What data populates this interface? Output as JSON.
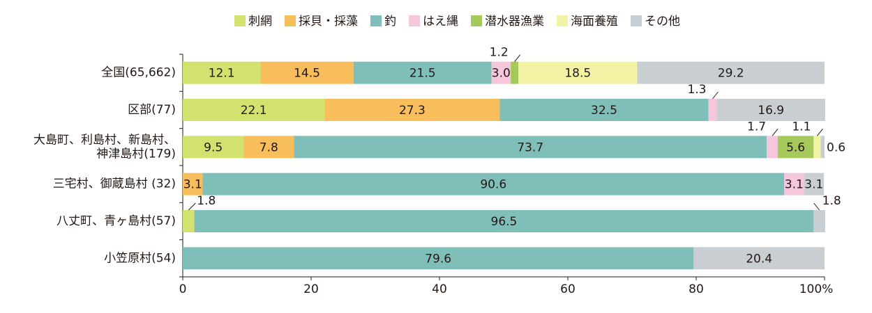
{
  "chart_data": {
    "type": "stacked-bar",
    "categories": [
      "全国(65,662)",
      "区部(77)",
      "大島町、利島村、新島村、\n神津島村(179)",
      "三宅村、御蔵島村 (32)",
      "八丈町、青ヶ島村(57)",
      "小笠原村(54)"
    ],
    "series": [
      {
        "name": "刺網",
        "color": "#d3e26e",
        "values": [
          12.1,
          22.1,
          9.5,
          null,
          1.8,
          null
        ],
        "value_labels": [
          "12.1",
          "22.1",
          "9.5",
          null,
          "1.8",
          null
        ]
      },
      {
        "name": "採貝・採藻",
        "color": "#f7be5b",
        "values": [
          14.5,
          27.3,
          7.8,
          3.1,
          null,
          null
        ],
        "value_labels": [
          "14.5",
          "27.3",
          "7.8",
          "3.1",
          null,
          null
        ]
      },
      {
        "name": "釣",
        "color": "#80bfb9",
        "values": [
          21.5,
          32.5,
          73.7,
          90.6,
          96.5,
          79.6
        ],
        "value_labels": [
          "21.5",
          "32.5",
          "73.7",
          "90.6",
          "96.5",
          "79.6"
        ]
      },
      {
        "name": "はえ縄",
        "color": "#f6c7dc",
        "values": [
          3.0,
          1.3,
          1.7,
          3.1,
          null,
          null
        ],
        "value_labels": [
          "3.0",
          "1.3",
          "1.7",
          "3.1",
          null,
          null
        ]
      },
      {
        "name": "潜水器漁業",
        "color": "#a5c95b",
        "values": [
          1.2,
          null,
          5.6,
          null,
          null,
          null
        ],
        "value_labels": [
          "1.2",
          null,
          "5.6",
          null,
          null,
          null
        ]
      },
      {
        "name": "海面養殖",
        "color": "#f3f3a6",
        "values": [
          18.5,
          null,
          1.1,
          null,
          null,
          null
        ],
        "value_labels": [
          "18.5",
          null,
          "1.1",
          null,
          null,
          null
        ]
      },
      {
        "name": "その他",
        "color": "#c8ced2",
        "values": [
          29.2,
          16.9,
          0.6,
          3.1,
          1.8,
          20.4
        ],
        "value_labels": [
          "29.2",
          "16.9",
          "0.6",
          "3.1",
          "1.8",
          "20.4"
        ]
      }
    ],
    "xlim": [
      0,
      100
    ],
    "xticks": [
      0,
      20,
      40,
      60,
      80,
      {
        "value": 100,
        "label": "100%"
      }
    ]
  }
}
